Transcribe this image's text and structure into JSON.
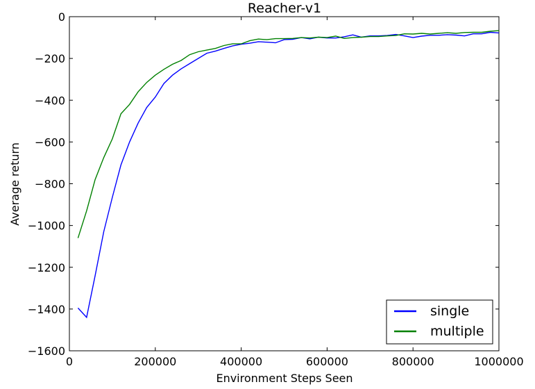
{
  "chart_data": {
    "type": "line",
    "title": "Reacher-v1",
    "xlabel": "Environment Steps Seen",
    "ylabel": "Average return",
    "xlim": [
      0,
      1000000
    ],
    "ylim": [
      -1600,
      0
    ],
    "xticks": [
      0,
      200000,
      400000,
      600000,
      800000,
      1000000
    ],
    "xtick_labels": [
      "0",
      "200000",
      "400000",
      "600000",
      "800000",
      "1000000"
    ],
    "yticks": [
      0,
      -200,
      -400,
      -600,
      -800,
      -1000,
      -1200,
      -1400,
      -1600
    ],
    "ytick_labels": [
      "0",
      "−200",
      "−400",
      "−600",
      "−800",
      "−1000",
      "−1200",
      "−1400",
      "−1600"
    ],
    "grid": false,
    "legend_position": "lower-right",
    "series": [
      {
        "name": "single",
        "color": "#0000ff",
        "x": [
          20000,
          40000,
          60000,
          80000,
          100000,
          120000,
          140000,
          160000,
          180000,
          200000,
          220000,
          240000,
          260000,
          280000,
          300000,
          320000,
          340000,
          360000,
          380000,
          400000,
          420000,
          440000,
          460000,
          480000,
          500000,
          520000,
          540000,
          560000,
          580000,
          600000,
          620000,
          640000,
          660000,
          680000,
          700000,
          720000,
          740000,
          760000,
          780000,
          800000,
          820000,
          840000,
          860000,
          880000,
          900000,
          920000,
          940000,
          960000,
          980000,
          1000000
        ],
        "y": [
          -1395,
          -1440,
          -1240,
          -1030,
          -865,
          -710,
          -600,
          -510,
          -435,
          -385,
          -320,
          -280,
          -250,
          -225,
          -200,
          -175,
          -165,
          -152,
          -140,
          -132,
          -127,
          -120,
          -122,
          -125,
          -110,
          -108,
          -100,
          -106,
          -98,
          -102,
          -102,
          -96,
          -87,
          -98,
          -92,
          -92,
          -90,
          -85,
          -92,
          -100,
          -93,
          -89,
          -89,
          -86,
          -88,
          -92,
          -82,
          -82,
          -75,
          -78
        ]
      },
      {
        "name": "multiple",
        "color": "#008000",
        "x": [
          20000,
          40000,
          60000,
          80000,
          100000,
          120000,
          140000,
          160000,
          180000,
          200000,
          220000,
          240000,
          260000,
          280000,
          300000,
          320000,
          340000,
          360000,
          380000,
          400000,
          420000,
          440000,
          460000,
          480000,
          500000,
          520000,
          540000,
          560000,
          580000,
          600000,
          620000,
          640000,
          660000,
          680000,
          700000,
          720000,
          740000,
          760000,
          780000,
          800000,
          820000,
          840000,
          860000,
          880000,
          900000,
          920000,
          940000,
          960000,
          980000,
          1000000
        ],
        "y": [
          -1060,
          -930,
          -780,
          -675,
          -585,
          -465,
          -420,
          -360,
          -315,
          -280,
          -252,
          -228,
          -210,
          -182,
          -168,
          -160,
          -152,
          -138,
          -130,
          -130,
          -115,
          -107,
          -110,
          -105,
          -105,
          -104,
          -100,
          -102,
          -98,
          -100,
          -93,
          -104,
          -100,
          -98,
          -95,
          -95,
          -92,
          -90,
          -82,
          -83,
          -80,
          -83,
          -80,
          -77,
          -80,
          -76,
          -75,
          -75,
          -70,
          -67
        ]
      }
    ]
  }
}
